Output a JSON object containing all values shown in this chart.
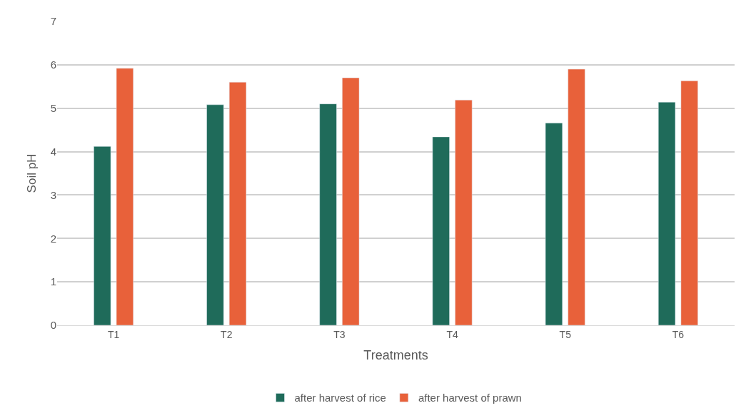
{
  "chart_data": {
    "type": "bar",
    "xlabel": "Treatments",
    "ylabel": "Soil pH",
    "categories": [
      "T1",
      "T2",
      "T3",
      "T4",
      "T5",
      "T6"
    ],
    "series": [
      {
        "name": "after harvest of rice",
        "color": "#1f6b5a",
        "values": [
          4.12,
          5.08,
          5.1,
          4.34,
          4.66,
          5.14
        ]
      },
      {
        "name": "after harvest of prawn",
        "color": "#e8613a",
        "values": [
          5.92,
          5.6,
          5.7,
          5.19,
          5.9,
          5.63
        ]
      }
    ],
    "ylim": [
      0,
      7
    ],
    "yticks": [
      0,
      1,
      2,
      3,
      4,
      5,
      6,
      7
    ],
    "grid": "y",
    "legend": "bottom"
  }
}
